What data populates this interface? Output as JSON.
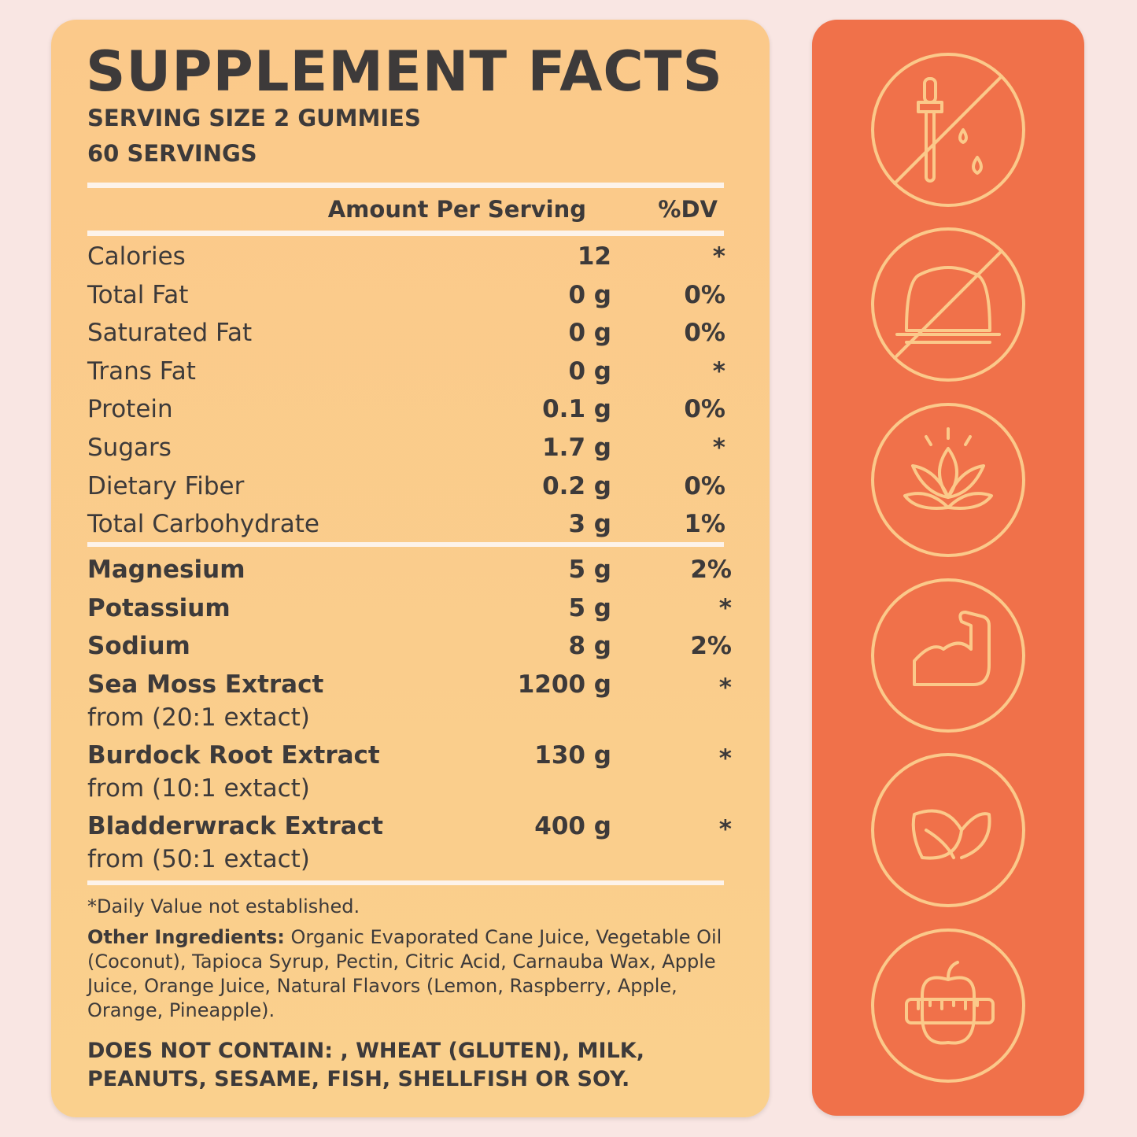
{
  "header": {
    "title": "SUPPLEMENT FACTS",
    "serving_size": "SERVING SIZE 2 GUMMIES",
    "servings": "60 SERVINGS"
  },
  "table": {
    "columns": [
      "Amount Per Serving",
      "%DV"
    ],
    "rows": [
      {
        "name": "Calories",
        "amount": "12",
        "dv": "*"
      },
      {
        "name": "Total Fat",
        "amount": "0 g",
        "dv": "0%"
      },
      {
        "name": "Saturated Fat",
        "amount": "0 g",
        "dv": "0%"
      },
      {
        "name": "Trans Fat",
        "amount": "0 g",
        "dv": "*"
      },
      {
        "name": "Protein",
        "amount": "0.1 g",
        "dv": "0%"
      },
      {
        "name": "Sugars",
        "amount": "1.7 g",
        "dv": "*"
      },
      {
        "name": "Dietary Fiber",
        "amount": "0.2 g",
        "dv": "0%"
      },
      {
        "name": "Total Carbohydrate",
        "amount": "3 g",
        "dv": "1%"
      }
    ],
    "ingredients": [
      {
        "name": "Magnesium",
        "amount": "5 g",
        "dv": "2%"
      },
      {
        "name": "Potassium",
        "amount": "5 g",
        "dv": "*"
      },
      {
        "name": "Sodium",
        "amount": "8 g",
        "dv": "2%"
      },
      {
        "name": "Sea Moss Extract",
        "source": "from (20:1 extact)",
        "amount": "1200 g",
        "dv": "*"
      },
      {
        "name": "Burdock Root Extract",
        "source": "from (10:1 extact)",
        "amount": "130 g",
        "dv": "*"
      },
      {
        "name": "Bladderwrack Extract",
        "source": "from (50:1 extact)",
        "amount": "400 g",
        "dv": "*"
      }
    ]
  },
  "footnote": "*Daily Value not established.",
  "other_ingredients": {
    "label": "Other Ingredients:",
    "text": "Organic Evaporated Cane Juice, Vegetable Oil (Coconut), Tapioca Syrup, Pectin, Citric Acid, Carnauba Wax, Apple Juice, Orange Juice, Natural Flavors (Lemon, Raspberry, Apple, Orange, Pineapple)."
  },
  "allergens": "DOES NOT CONTAIN: , WHEAT (GLUTEN), MILK, PEANUTS, SESAME, FISH, SHELLFISH OR SOY."
}
